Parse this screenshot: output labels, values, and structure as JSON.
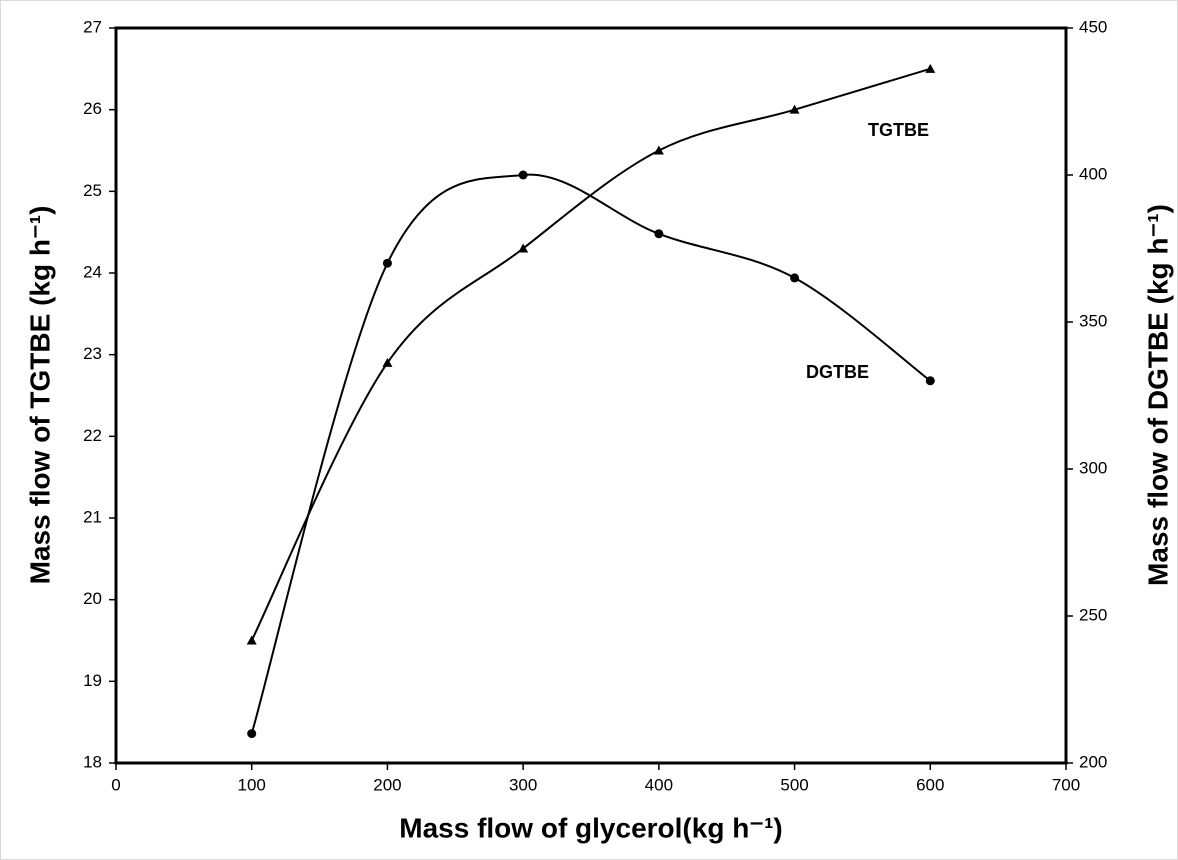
{
  "chart_data": {
    "type": "line",
    "x": [
      100,
      200,
      300,
      400,
      500,
      600
    ],
    "xlabel": "Mass flow of glycerol(kg h⁻¹)",
    "ylabel": "Mass flow of TGTBE  (kg h⁻¹)",
    "y2label": "Mass flow of DGTBE (kg h⁻¹)",
    "xlim": [
      0,
      700
    ],
    "xticks": [
      0,
      100,
      200,
      300,
      400,
      500,
      600,
      700
    ],
    "ylim": [
      18,
      27
    ],
    "yticks": [
      18,
      19,
      20,
      21,
      22,
      23,
      24,
      25,
      26,
      27
    ],
    "y2lim": [
      200,
      450
    ],
    "y2ticks": [
      200,
      250,
      300,
      350,
      400,
      450
    ],
    "smooth": true,
    "series": [
      {
        "name": "TGTBE",
        "color": "#000000",
        "marker": "triangle",
        "values": [
          19.5,
          22.9,
          24.3,
          25.5,
          26.0,
          26.5
        ]
      },
      {
        "name": "DGTBE",
        "color": "#000000",
        "marker": "circle",
        "axis": "y2",
        "values": [
          210,
          370,
          400,
          380,
          365,
          330
        ]
      }
    ]
  }
}
